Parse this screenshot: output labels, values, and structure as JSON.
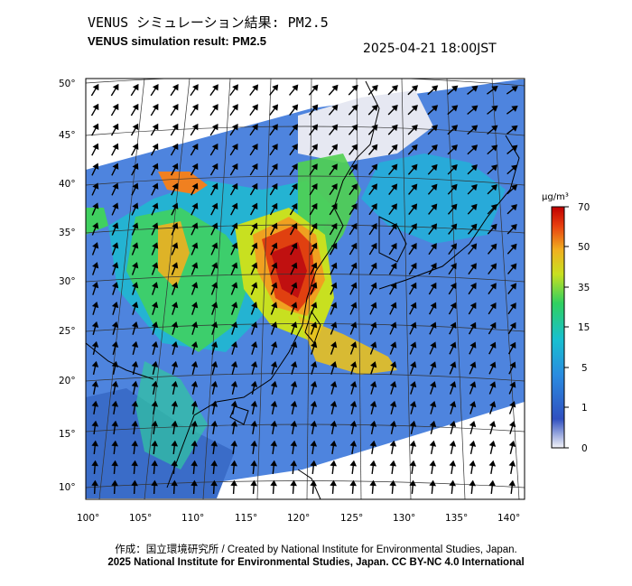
{
  "header": {
    "title_jp": "VENUS シミュレーション結果: PM2.5",
    "title_en": "VENUS simulation result: PM2.5",
    "timestamp": "2025-04-21 18:00JST"
  },
  "map": {
    "lat_labels": [
      "50°",
      "45°",
      "40°",
      "35°",
      "30°",
      "25°",
      "20°",
      "15°",
      "10°"
    ],
    "lon_labels": [
      "100°",
      "105°",
      "110°",
      "115°",
      "120°",
      "125°",
      "130°",
      "135°",
      "140°"
    ],
    "variable": "PM2.5",
    "overlay": "wind vectors"
  },
  "colorbar": {
    "unit_label": "µg/m³",
    "ticks": [
      "70",
      "50",
      "35",
      "15",
      "5",
      "1",
      "0"
    ],
    "colors": [
      "#e8e8f0",
      "#3050c0",
      "#2a8be0",
      "#18c0d0",
      "#30d060",
      "#c8e020",
      "#f0b020",
      "#e84010",
      "#c00000"
    ]
  },
  "footer": {
    "credit": "作成：国立環境研究所 / Created by National Institute for Environmental Studies, Japan.",
    "license": "2025 National Institute for Environmental Studies, Japan. CC BY-NC 4.0 International"
  }
}
